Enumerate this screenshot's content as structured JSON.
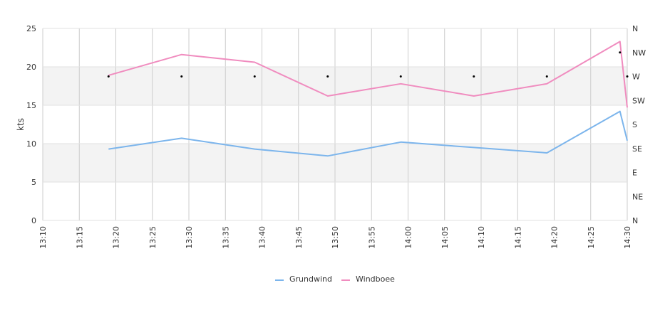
{
  "chart_data": {
    "type": "line",
    "title": "",
    "xlabel": "",
    "ylabel": "kts",
    "ylim": [
      0,
      25
    ],
    "y_ticks": [
      "0",
      "5",
      "10",
      "15",
      "20",
      "25"
    ],
    "x_ticks": [
      "13:10",
      "13:15",
      "13:20",
      "13:25",
      "13:30",
      "13:35",
      "13:40",
      "13:45",
      "13:50",
      "13:55",
      "14:00",
      "14:05",
      "14:10",
      "14:15",
      "14:20",
      "14:25",
      "14:30"
    ],
    "xlim": [
      "13:10",
      "14:30"
    ],
    "y2_ticks": [
      "N",
      "NE",
      "E",
      "SE",
      "S",
      "SW",
      "W",
      "NW",
      "N"
    ],
    "grid": true,
    "legend_position": "bottom-center",
    "series": [
      {
        "name": "Grundwind",
        "color": "#7cb5ec",
        "x": [
          "13:19",
          "13:29",
          "13:39",
          "13:49",
          "13:59",
          "14:09",
          "14:19",
          "14:29",
          "14:30"
        ],
        "values": [
          9.3,
          10.7,
          9.3,
          8.4,
          10.2,
          9.5,
          8.8,
          14.2,
          10.4
        ]
      },
      {
        "name": "Windboee",
        "color": "#f08cbf",
        "x": [
          "13:19",
          "13:29",
          "13:39",
          "13:49",
          "13:59",
          "14:09",
          "14:19",
          "14:29",
          "14:30"
        ],
        "values": [
          18.9,
          21.6,
          20.6,
          16.2,
          17.8,
          16.2,
          17.8,
          23.3,
          14.7
        ]
      }
    ],
    "direction_markers": {
      "x": [
        "13:19",
        "13:29",
        "13:39",
        "13:49",
        "13:59",
        "14:09",
        "14:19",
        "14:29",
        "14:30"
      ],
      "values": [
        "W",
        "W",
        "W",
        "W",
        "W",
        "W",
        "W",
        "NW",
        "W"
      ]
    }
  }
}
